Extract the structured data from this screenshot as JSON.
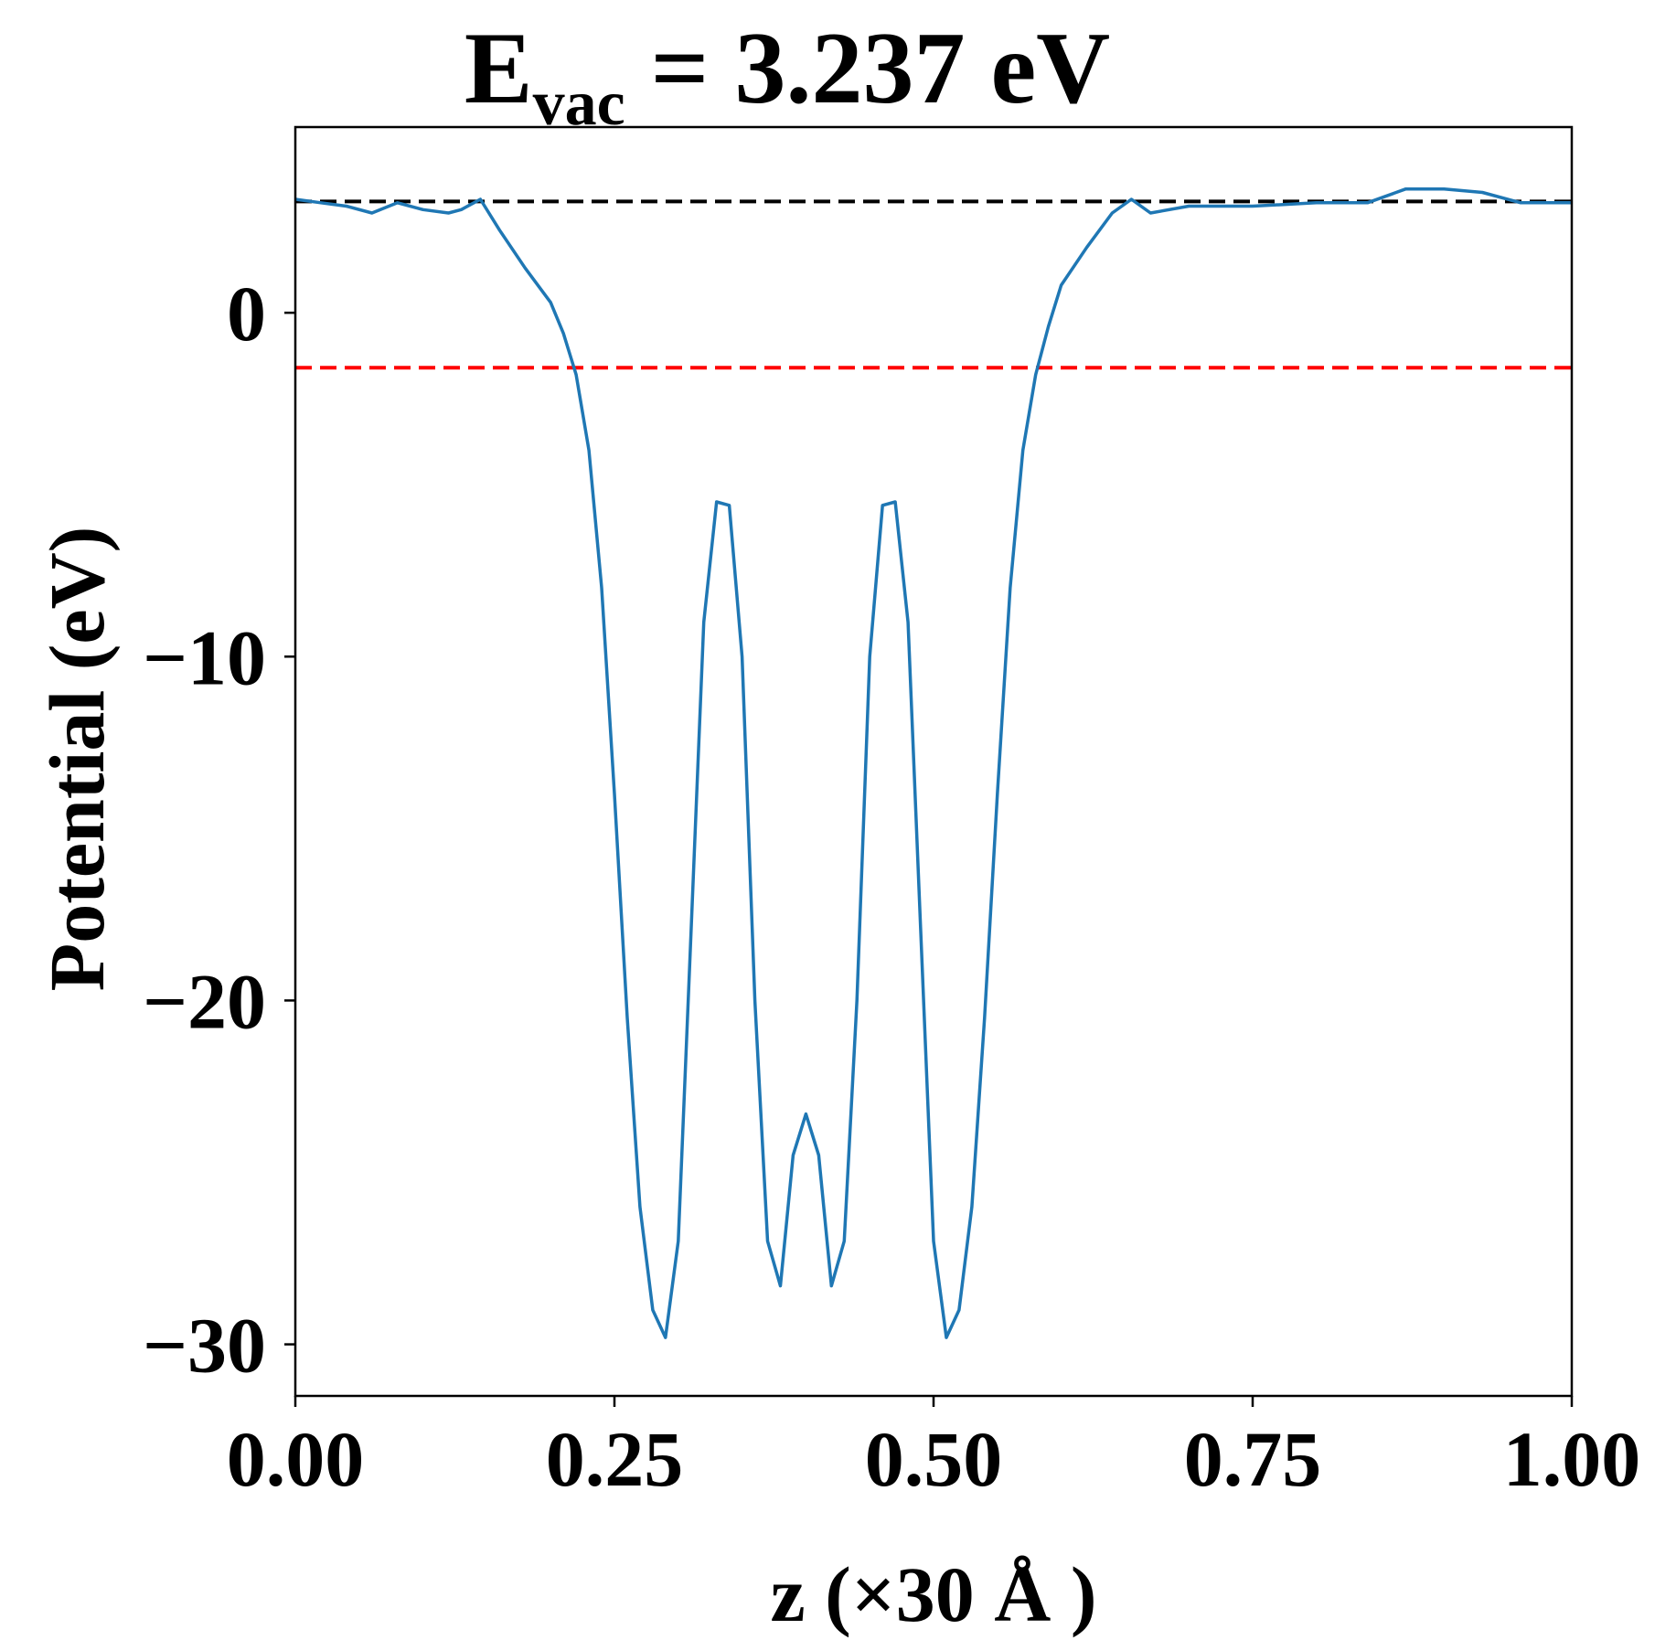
{
  "chart_data": {
    "type": "line",
    "title": {
      "main": "E",
      "subscript": "vac",
      "rest": " = 3.237 eV"
    },
    "xlabel": "z (×30 Å )",
    "ylabel": "Potential (eV)",
    "xlim": [
      0.0,
      1.0
    ],
    "ylim": [
      -31.5,
      5.4
    ],
    "x_ticks": [
      {
        "value": 0.0,
        "label": "0.00"
      },
      {
        "value": 0.25,
        "label": "0.25"
      },
      {
        "value": 0.5,
        "label": "0.50"
      },
      {
        "value": 0.75,
        "label": "0.75"
      },
      {
        "value": 1.0,
        "label": "1.00"
      }
    ],
    "y_ticks": [
      {
        "value": 0,
        "label": "0"
      },
      {
        "value": -10,
        "label": "−10"
      },
      {
        "value": -20,
        "label": "−20"
      },
      {
        "value": -30,
        "label": "−30"
      }
    ],
    "reference_lines": [
      {
        "name": "vacuum-level",
        "y": 3.237,
        "color": "#000000",
        "style": "dashed"
      },
      {
        "name": "fermi-level",
        "y": -1.6,
        "color": "#ff0000",
        "style": "dashed"
      }
    ],
    "series": [
      {
        "name": "planar-averaged potential",
        "color": "#1f77b4",
        "x": [
          0.0,
          0.02,
          0.04,
          0.06,
          0.08,
          0.1,
          0.12,
          0.13,
          0.145,
          0.16,
          0.18,
          0.2,
          0.21,
          0.22,
          0.23,
          0.24,
          0.25,
          0.26,
          0.27,
          0.28,
          0.29,
          0.3,
          0.31,
          0.32,
          0.33,
          0.34,
          0.35,
          0.36,
          0.37,
          0.38,
          0.39,
          0.4,
          0.41,
          0.42,
          0.43,
          0.44,
          0.45,
          0.46,
          0.47,
          0.48,
          0.49,
          0.5,
          0.51,
          0.52,
          0.53,
          0.54,
          0.55,
          0.56,
          0.57,
          0.58,
          0.59,
          0.6,
          0.62,
          0.64,
          0.655,
          0.67,
          0.7,
          0.75,
          0.8,
          0.84,
          0.87,
          0.9,
          0.93,
          0.96,
          0.98,
          1.0
        ],
        "y": [
          3.3,
          3.2,
          3.1,
          2.9,
          3.2,
          3.0,
          2.9,
          3.0,
          3.3,
          2.4,
          1.3,
          0.3,
          -0.6,
          -1.8,
          -4.0,
          -8.0,
          -14.0,
          -20.5,
          -26.0,
          -29.0,
          -29.8,
          -27.0,
          -18.0,
          -9.0,
          -5.5,
          -5.6,
          -10.0,
          -20.0,
          -27.0,
          -28.3,
          -24.5,
          -23.3,
          -24.5,
          -28.3,
          -27.0,
          -20.0,
          -10.0,
          -5.6,
          -5.5,
          -9.0,
          -18.0,
          -27.0,
          -29.8,
          -29.0,
          -26.0,
          -20.5,
          -14.0,
          -8.0,
          -4.0,
          -1.8,
          -0.4,
          0.8,
          1.9,
          2.9,
          3.3,
          2.9,
          3.1,
          3.1,
          3.2,
          3.2,
          3.6,
          3.6,
          3.5,
          3.2,
          3.2,
          3.2
        ]
      }
    ]
  }
}
